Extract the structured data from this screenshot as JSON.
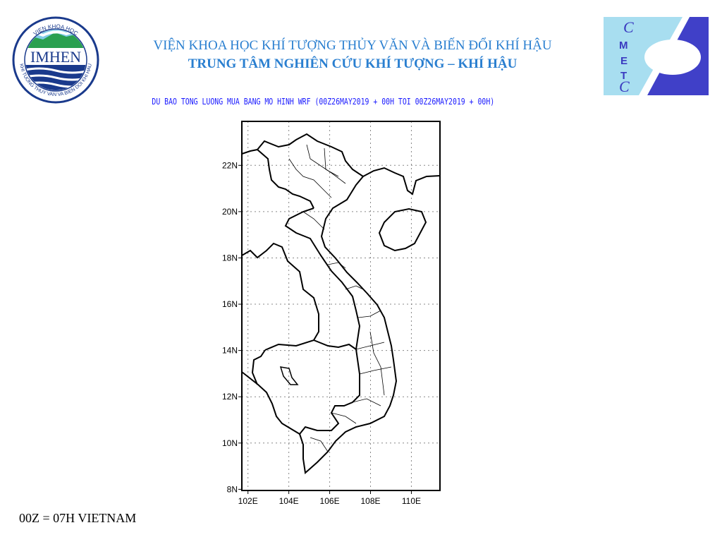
{
  "header": {
    "institute_title": "VIỆN KHOA HỌC KHÍ TƯỢNG THỦY VĂN VÀ BIẾN ĐỔI KHÍ HẬU",
    "center_title": "TRUNG TÂM NGHIÊN CỨU KHÍ TƯỢNG – KHÍ HẬU",
    "left_logo": {
      "text": "IMHEN",
      "ring_text_top": "VIEN KHOA HOC",
      "ring_text_bottom": "KHI TUONG THUY VAN VA BIEN DOI KHI HAU"
    },
    "right_logo": {
      "text": "CMETC",
      "colors": {
        "light": "#a8def0",
        "dark": "#4040c8"
      }
    }
  },
  "map": {
    "title": "DU BAO TONG LUONG MUA BANG MO HINH WRF (00Z26MAY2019 + 00H TOI 00Z26MAY2019 + 00H)",
    "lat_range": [
      8,
      24
    ],
    "lon_range": [
      101.7,
      111.4
    ],
    "lat_ticks": [
      "22N",
      "20N",
      "18N",
      "16N",
      "14N",
      "12N",
      "10N",
      "8N"
    ],
    "lon_ticks": [
      "102E",
      "104E",
      "106E",
      "108E",
      "110E"
    ],
    "grid": true
  },
  "footer": {
    "note": "00Z = 07H VIETNAM"
  }
}
